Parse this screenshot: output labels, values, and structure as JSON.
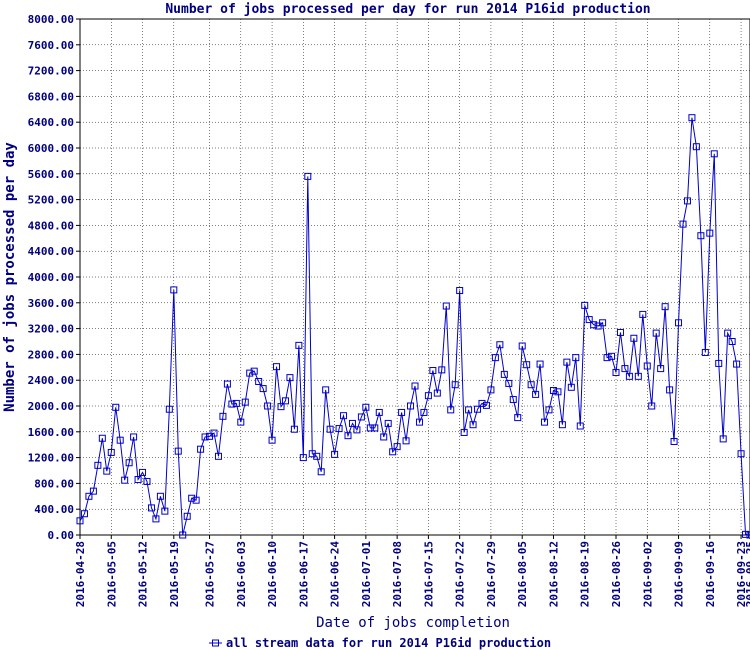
{
  "chart_data": {
    "type": "line",
    "title": "Number of jobs processed per day for run 2014 P16id production",
    "xlabel": "Date of jobs completion",
    "ylabel": "Number of jobs processed per day",
    "ylim": [
      0,
      8000
    ],
    "yticks": [
      "0.00",
      "400.00",
      "800.00",
      "1200.00",
      "1600.00",
      "2000.00",
      "2400.00",
      "2800.00",
      "3200.00",
      "3600.00",
      "4000.00",
      "4400.00",
      "4800.00",
      "5200.00",
      "5600.00",
      "6000.00",
      "6400.00",
      "6800.00",
      "7200.00",
      "7600.00",
      "8000.00"
    ],
    "x_start": "2016-04-28",
    "x_end": "2016-09-25",
    "xticks": [
      "2016-04-28",
      "2016-05-05",
      "2016-05-12",
      "2016-05-19",
      "2016-05-27",
      "2016-06-03",
      "2016-06-10",
      "2016-06-17",
      "2016-06-24",
      "2016-07-01",
      "2016-07-08",
      "2016-07-15",
      "2016-07-22",
      "2016-07-29",
      "2016-08-05",
      "2016-08-12",
      "2016-08-19",
      "2016-08-26",
      "2016-09-02",
      "2016-09-09",
      "2016-09-16",
      "2016-09-23",
      "2016-09-25"
    ],
    "grid": true,
    "legend_position": "bottom",
    "color": "#0000cc",
    "series": [
      {
        "name": "all stream data for run 2014 P16id production",
        "values": [
          220,
          330,
          600,
          680,
          1080,
          1500,
          990,
          1280,
          1980,
          1470,
          850,
          1120,
          1520,
          860,
          970,
          830,
          420,
          250,
          600,
          370,
          1950,
          3800,
          1300,
          0,
          290,
          570,
          540,
          1330,
          1520,
          1530,
          1580,
          1220,
          1840,
          2340,
          2030,
          2040,
          1750,
          2060,
          2510,
          2540,
          2380,
          2270,
          2000,
          1470,
          2610,
          1990,
          2080,
          2440,
          1640,
          2940,
          1200,
          5560,
          1260,
          1220,
          980,
          2250,
          1640,
          1250,
          1650,
          1850,
          1540,
          1730,
          1630,
          1830,
          1980,
          1660,
          1660,
          1900,
          1520,
          1730,
          1290,
          1370,
          1900,
          1460,
          2000,
          2310,
          1750,
          1900,
          2160,
          2550,
          2200,
          2560,
          3550,
          1940,
          2330,
          3790,
          1590,
          1940,
          1710,
          1950,
          2040,
          2010,
          2250,
          2750,
          2950,
          2490,
          2350,
          2100,
          1820,
          2930,
          2640,
          2330,
          2180,
          2650,
          1750,
          1940,
          2240,
          2220,
          1710,
          2680,
          2290,
          2750,
          1690,
          3560,
          3340,
          3260,
          3240,
          3290,
          2750,
          2770,
          2520,
          3140,
          2580,
          2460,
          3050,
          2460,
          3420,
          2620,
          2000,
          3130,
          2580,
          3540,
          2250,
          1450,
          3290,
          4820,
          5180,
          6470,
          6020,
          4640,
          2830,
          4680,
          5910,
          2660,
          1490,
          3130,
          3000,
          2650,
          1260,
          10,
          0
        ]
      }
    ]
  }
}
